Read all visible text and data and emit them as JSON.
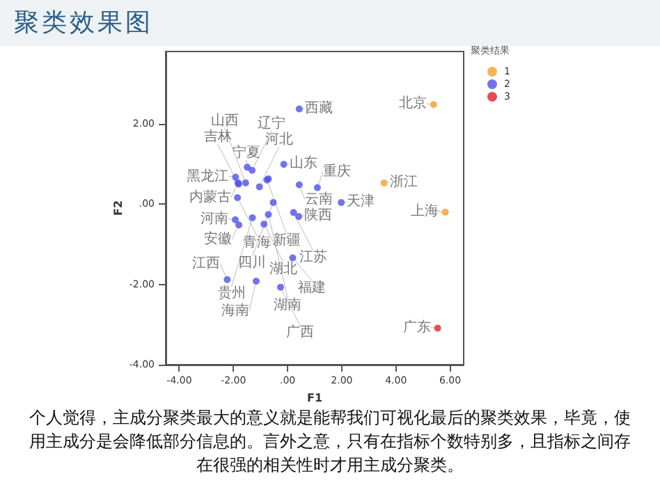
{
  "chart_data": {
    "type": "scatter",
    "title": "聚类效果图",
    "xlabel": "F1",
    "ylabel": "F2",
    "legend_title": "聚类结果",
    "legend": "top right",
    "marker": "circle",
    "grid": false,
    "xlim": [
      -4.5,
      6.5
    ],
    "ylim": [
      -4,
      3.8
    ],
    "xticks": [
      {
        "value": -4,
        "label": "-4.00"
      },
      {
        "value": -2,
        "label": "-2.00"
      },
      {
        "value": 0,
        "label": ".00"
      },
      {
        "value": 2,
        "label": "2.00"
      },
      {
        "value": 4,
        "label": "4.00"
      },
      {
        "value": 6,
        "label": "6.00"
      }
    ],
    "yticks": [
      {
        "value": -4,
        "label": "-4.00"
      },
      {
        "value": -2,
        "label": "-2.00"
      },
      {
        "value": 0,
        "label": ".00"
      },
      {
        "value": 2,
        "label": "2.00"
      }
    ],
    "series": [
      {
        "name": "1",
        "color": "#f0a030",
        "x": [
          5.39,
          3.56,
          5.82
        ],
        "values": [
          2.48,
          0.53,
          -0.2
        ]
      },
      {
        "name": "2",
        "color": "#5050e8",
        "x": [
          0.43,
          -0.14,
          -1.49,
          -1.31,
          -1.92,
          -1.83,
          -1.81,
          -1.55,
          -1.04,
          -0.76,
          -0.71,
          0.43,
          1.1,
          -1.85,
          1.98,
          -0.53,
          0.22,
          0.41,
          -0.71,
          -1.3,
          -1.93,
          -1.8,
          -0.87,
          0.19,
          -2.23,
          -1.16,
          -0.26
        ],
        "values": [
          2.37,
          0.99,
          0.92,
          0.84,
          0.67,
          0.53,
          0.5,
          0.53,
          0.43,
          0.6,
          0.63,
          0.48,
          0.41,
          0.16,
          0.04,
          0.04,
          -0.21,
          -0.31,
          -0.26,
          -0.34,
          -0.39,
          -0.52,
          -0.5,
          -1.34,
          -1.88,
          -1.92,
          -2.07
        ]
      },
      {
        "name": "3",
        "color": "#e02030",
        "x": [
          5.54
        ],
        "values": [
          -3.09
        ]
      }
    ],
    "annotations": [
      {
        "text": "北京",
        "x": 5.39,
        "y": 2.48
      },
      {
        "text": "浙江",
        "x": 3.56,
        "y": 0.53
      },
      {
        "text": "上海",
        "x": 5.82,
        "y": -0.2
      },
      {
        "text": "广东",
        "x": 5.54,
        "y": -3.09
      },
      {
        "text": "西藏",
        "x": 0.43,
        "y": 2.37
      },
      {
        "text": "山东",
        "x": -0.14,
        "y": 0.99
      },
      {
        "text": "宁夏",
        "x": -1.49,
        "y": 0.92
      },
      {
        "text": "辽宁",
        "x": -1.31,
        "y": 0.84
      },
      {
        "text": "黑龙江",
        "x": -1.92,
        "y": 0.67
      },
      {
        "text": "内蒙古",
        "x": -1.83,
        "y": 0.53
      },
      {
        "text": "吉林",
        "x": -1.81,
        "y": 0.5
      },
      {
        "text": "山西",
        "x": -1.55,
        "y": 0.53
      },
      {
        "text": "河北",
        "x": -1.04,
        "y": 0.43
      },
      {
        "text": "新疆",
        "x": -0.76,
        "y": 0.6
      },
      {
        "text": "云南",
        "x": 0.43,
        "y": 0.48
      },
      {
        "text": "重庆",
        "x": 1.1,
        "y": 0.41
      },
      {
        "text": "青海",
        "x": -1.85,
        "y": 0.16
      },
      {
        "text": "天津",
        "x": 1.98,
        "y": 0.04
      },
      {
        "text": "四川",
        "x": -0.53,
        "y": 0.04
      },
      {
        "text": "江苏",
        "x": 0.22,
        "y": -0.21
      },
      {
        "text": "陕西",
        "x": 0.41,
        "y": -0.31
      },
      {
        "text": "湖南",
        "x": -0.71,
        "y": -0.26
      },
      {
        "text": "贵州",
        "x": -1.3,
        "y": -0.34
      },
      {
        "text": "河南",
        "x": -1.93,
        "y": -0.39
      },
      {
        "text": "安徽",
        "x": -1.8,
        "y": -0.52
      },
      {
        "text": "湖北",
        "x": -0.87,
        "y": -0.5
      },
      {
        "text": "福建",
        "x": 0.19,
        "y": -1.34
      },
      {
        "text": "江西",
        "x": -2.23,
        "y": -1.88
      },
      {
        "text": "海南",
        "x": -1.16,
        "y": -1.92
      },
      {
        "text": "广西",
        "x": -0.26,
        "y": -2.07
      },
      "个人觉得，主成分聚类最大的意义就是能帮我们可视化最后的聚类效果，毕竟，使用主成分是会降低部分信息的。言外之意，只有在指标个数特别多，且指标之间存在很强的相关性时才用主成分聚类。"
    ]
  }
}
